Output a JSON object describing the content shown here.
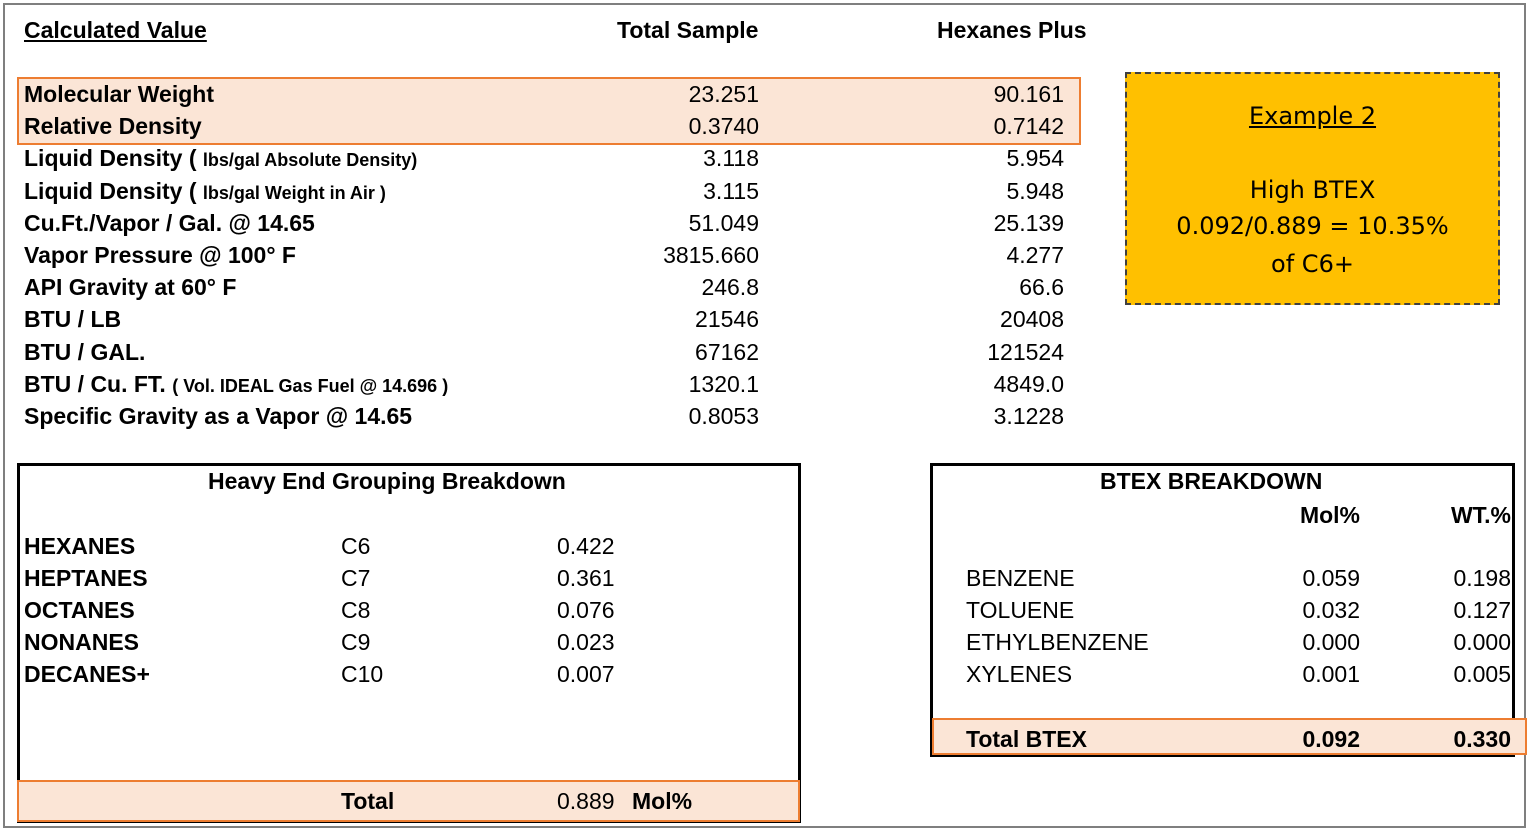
{
  "header": {
    "calculated_value": "Calculated Value",
    "total_sample": "Total Sample",
    "hexanes_plus": "Hexanes Plus"
  },
  "properties": [
    {
      "label": "Molecular Weight",
      "small": "",
      "suffix": "",
      "total": "23.251",
      "hexanes": "90.161"
    },
    {
      "label": "Relative Density",
      "small": "",
      "suffix": "",
      "total": "0.3740",
      "hexanes": "0.7142"
    },
    {
      "label": "Liquid Density ( ",
      "small": "lbs/gal Absolute Density)",
      "suffix": "",
      "total": "3.118",
      "hexanes": "5.954"
    },
    {
      "label": "Liquid Density ( ",
      "small": "lbs/gal Weight in Air )",
      "suffix": "",
      "total": "3.115",
      "hexanes": "5.948"
    },
    {
      "label": "Cu.Ft./Vapor / Gal. @ 14.65",
      "small": "",
      "suffix": "",
      "total": "51.049",
      "hexanes": "25.139"
    },
    {
      "label": "Vapor Pressure @ 100° F",
      "small": "",
      "suffix": "",
      "total": "3815.660",
      "hexanes": "4.277"
    },
    {
      "label": "API Gravity at 60° F",
      "small": "",
      "suffix": "",
      "total": "246.8",
      "hexanes": "66.6"
    },
    {
      "label": "BTU / LB",
      "small": "",
      "suffix": "",
      "total": "21546",
      "hexanes": "20408"
    },
    {
      "label": "BTU / GAL.",
      "small": "",
      "suffix": "",
      "total": "67162",
      "hexanes": "121524"
    },
    {
      "label": "BTU / Cu. FT. ",
      "small": "( Vol. IDEAL Gas Fuel @ 14.696 )",
      "suffix": "",
      "total": "1320.1",
      "hexanes": "4849.0"
    },
    {
      "label": "Specific Gravity as a Vapor @ 14.65",
      "small": "",
      "suffix": "",
      "total": "0.8053",
      "hexanes": "3.1228"
    }
  ],
  "callout": {
    "title": "Example 2",
    "line1": "High BTEX",
    "line2": "0.092/0.889 = 10.35%",
    "line3": "of C6+"
  },
  "heavy_end": {
    "title": "Heavy End Grouping Breakdown",
    "rows": [
      {
        "name": "HEXANES",
        "carbon": "C6",
        "value": "0.422"
      },
      {
        "name": "HEPTANES",
        "carbon": "C7",
        "value": "0.361"
      },
      {
        "name": "OCTANES",
        "carbon": "C8",
        "value": "0.076"
      },
      {
        "name": "NONANES",
        "carbon": "C9",
        "value": "0.023"
      },
      {
        "name": "DECANES+",
        "carbon": "C10",
        "value": "0.007"
      }
    ],
    "total_label": "Total",
    "total_value": "0.889",
    "total_unit": "Mol%"
  },
  "btex": {
    "title": "BTEX BREAKDOWN",
    "col_mol": "Mol%",
    "col_wt": "WT.%",
    "rows": [
      {
        "name": "BENZENE",
        "mol": "0.059",
        "wt": "0.198"
      },
      {
        "name": "TOLUENE",
        "mol": "0.032",
        "wt": "0.127"
      },
      {
        "name": "ETHYLBENZENE",
        "mol": "0.000",
        "wt": "0.000"
      },
      {
        "name": "XYLENES",
        "mol": "0.001",
        "wt": "0.005"
      }
    ],
    "total_label": "Total BTEX",
    "total_mol": "0.092",
    "total_wt": "0.330"
  }
}
